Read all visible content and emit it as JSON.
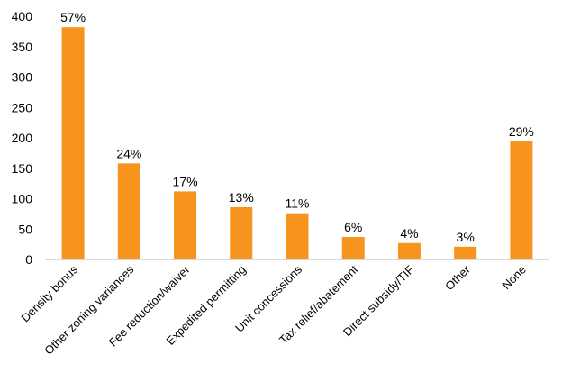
{
  "chart_data": {
    "type": "bar",
    "title": "",
    "xlabel": "",
    "ylabel": "",
    "ylim": [
      0,
      400
    ],
    "yticks": [
      0,
      50,
      100,
      150,
      200,
      250,
      300,
      350,
      400
    ],
    "grid": false,
    "legend": "none",
    "bar_color": "#f7941d",
    "categories": [
      "Density bonus",
      "Other zoning variances",
      "Fee reduction/waiver",
      "Expedited permitting",
      "Unit concessions",
      "Tax relief/abatement",
      "Direct subsidy/TIF",
      "Other",
      "None"
    ],
    "values": [
      382,
      158,
      112,
      86,
      76,
      37,
      27,
      21,
      194
    ],
    "data_labels": [
      "57%",
      "24%",
      "17%",
      "13%",
      "11%",
      "6%",
      "4%",
      "3%",
      "29%"
    ]
  }
}
